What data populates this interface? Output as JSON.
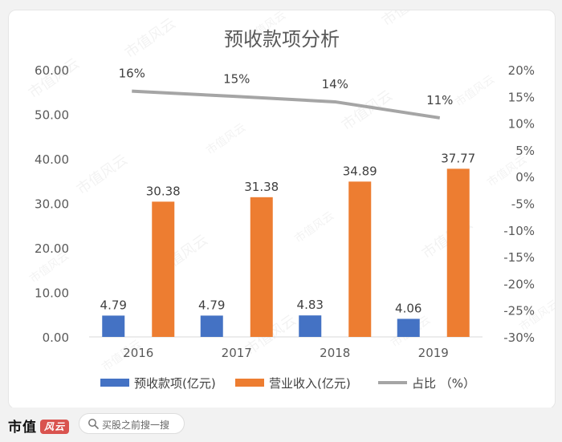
{
  "chart_data": {
    "type": "bar",
    "title": "预收款项分析",
    "categories": [
      "2016",
      "2017",
      "2018",
      "2019"
    ],
    "series": [
      {
        "name": "预收款项(亿元)",
        "kind": "bar",
        "axis": "left",
        "color": "#4472c4",
        "values": [
          4.79,
          4.79,
          4.83,
          4.06
        ],
        "labels": [
          "4.79",
          "4.79",
          "4.83",
          "4.06"
        ]
      },
      {
        "name": "营业收入(亿元)",
        "kind": "bar",
        "axis": "left",
        "color": "#ed7d31",
        "values": [
          30.38,
          31.38,
          34.89,
          37.77
        ],
        "labels": [
          "30.38",
          "31.38",
          "34.89",
          "37.77"
        ]
      },
      {
        "name": "占比 （%）",
        "kind": "line",
        "axis": "right",
        "color": "#a5a5a5",
        "values": [
          16,
          15,
          14,
          11
        ],
        "labels": [
          "16%",
          "15%",
          "14%",
          "11%"
        ]
      }
    ],
    "left_axis": {
      "min": 0,
      "max": 60,
      "step": 10,
      "ticks": [
        "0.00",
        "10.00",
        "20.00",
        "30.00",
        "40.00",
        "50.00",
        "60.00"
      ]
    },
    "right_axis": {
      "min": -30,
      "max": 20,
      "step": 5,
      "ticks": [
        "-30%",
        "-25%",
        "-20%",
        "-15%",
        "-10%",
        "-5%",
        "0%",
        "5%",
        "10%",
        "15%",
        "20%"
      ]
    },
    "grid": false,
    "legend": "bottom"
  },
  "watermark": "市值风云",
  "footer": {
    "brand": "市值",
    "brand_logo": "风云",
    "search_placeholder": "买股之前搜一搜"
  }
}
